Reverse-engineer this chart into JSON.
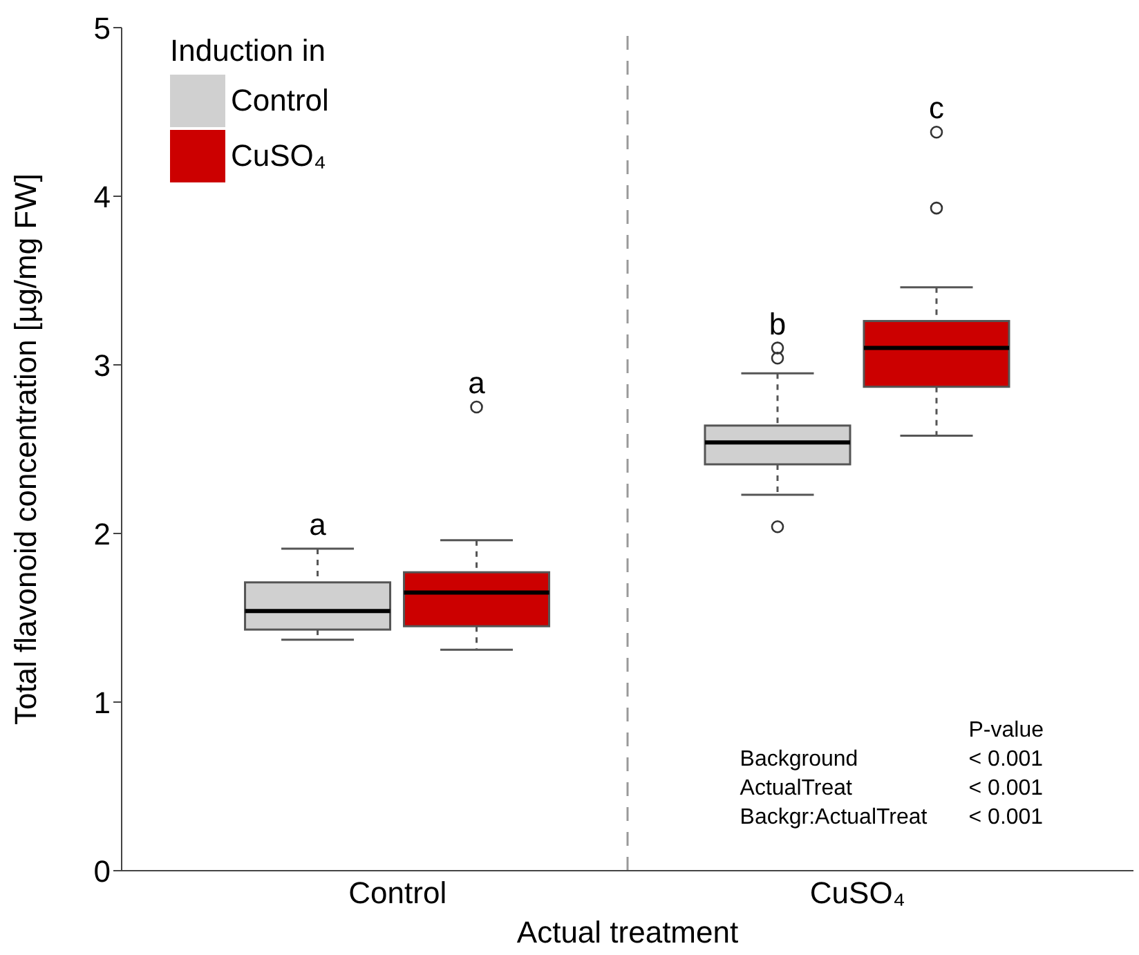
{
  "chart_data": {
    "type": "box",
    "xlabel": "Actual treatment",
    "ylabel": "Total flavonoid concentration [µg/mg FW]",
    "legend_title": "Induction in",
    "legend": "top left",
    "categories": [
      "Control",
      "CuSO₄"
    ],
    "ylim": [
      0,
      5
    ],
    "yticks": [
      0,
      1,
      2,
      3,
      4,
      5
    ],
    "series": [
      {
        "name": "Control",
        "color": "#d0d0d0",
        "value_labels": [
          "a",
          "b"
        ],
        "boxes": [
          {
            "low": 1.37,
            "q1": 1.43,
            "median": 1.54,
            "q3": 1.71,
            "high": 1.91
          },
          {
            "low": 2.23,
            "q1": 2.41,
            "median": 2.54,
            "q3": 2.64,
            "high": 2.95,
            "outliers": [
              3.1,
              3.04,
              2.04
            ]
          }
        ]
      },
      {
        "name": "CuSO₄",
        "color": "#cc0000",
        "value_labels": [
          "a",
          "c"
        ],
        "boxes": [
          {
            "low": 1.31,
            "q1": 1.45,
            "median": 1.65,
            "q3": 1.77,
            "high": 1.96,
            "outliers": [
              2.75
            ]
          },
          {
            "low": 2.58,
            "q1": 2.87,
            "median": 3.1,
            "q3": 3.26,
            "high": 3.46,
            "outliers": [
              4.38,
              3.93
            ]
          }
        ]
      }
    ],
    "annotations": [
      "P-value",
      "Background",
      "< 0.001",
      "ActualTreat",
      "< 0.001",
      "Backgr:ActualTreat",
      "< 0.001"
    ]
  }
}
